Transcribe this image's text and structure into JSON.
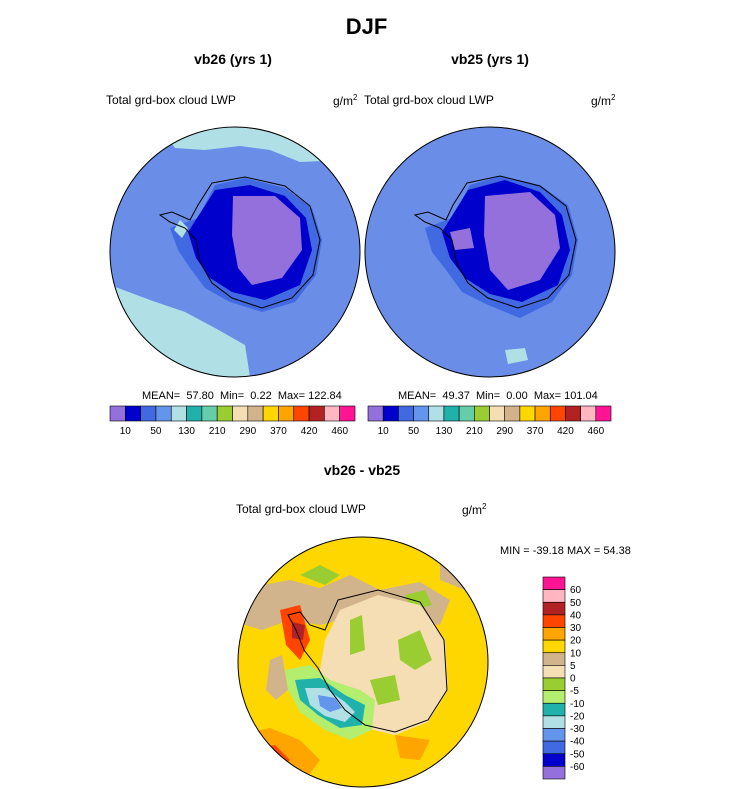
{
  "title": "DJF",
  "panels": [
    {
      "name": "vb26",
      "title": "vb26 (yrs 1)",
      "variable": "Total grd-box cloud LWP",
      "units_base": "g/m",
      "units_exp": "2",
      "stats": {
        "mean_label": "MEAN=",
        "mean": "57.80",
        "min_label": "Min=",
        "min": "0.22",
        "max_label": "Max=",
        "max": "122.84"
      }
    },
    {
      "name": "vb25",
      "title": "vb25 (yrs 1)",
      "variable": "Total grd-box cloud LWP",
      "units_base": "g/m",
      "units_exp": "2",
      "stats": {
        "mean_label": "MEAN=",
        "mean": "49.37",
        "min_label": "Min=",
        "min": "0.00",
        "max_label": "Max=",
        "max": "101.04"
      }
    }
  ],
  "diff": {
    "title": "vb26 - vb25",
    "variable": "Total grd-box cloud LWP",
    "units_base": "g/m",
    "units_exp": "2",
    "minmax": "MIN = -39.18 MAX =  54.38"
  },
  "chart_data": [
    {
      "type": "heatmap",
      "projection": "south-polar-stereographic",
      "title": "vb26 (yrs 1)",
      "field": "Total grd-box cloud LWP",
      "units": "g/m2",
      "mean": 57.8,
      "min": 0.22,
      "max": 122.84,
      "colorbar_colors": [
        "#9370db",
        "#0000cd",
        "#4169e1",
        "#6495ed",
        "#b0e0e6",
        "#20b2aa",
        "#66cdaa",
        "#9acd32",
        "#f5deb3",
        "#d2b48c",
        "#ffd700",
        "#ffa500",
        "#ff4500",
        "#b22222",
        "#ffb6c1",
        "#ff1493"
      ],
      "colorbar_labels": [
        "10",
        "50",
        "130",
        "210",
        "290",
        "370",
        "420",
        "460"
      ]
    },
    {
      "type": "heatmap",
      "projection": "south-polar-stereographic",
      "title": "vb25 (yrs 1)",
      "field": "Total grd-box cloud LWP",
      "units": "g/m2",
      "mean": 49.37,
      "min": 0.0,
      "max": 101.04,
      "colorbar_colors": [
        "#9370db",
        "#0000cd",
        "#4169e1",
        "#6495ed",
        "#b0e0e6",
        "#20b2aa",
        "#66cdaa",
        "#9acd32",
        "#f5deb3",
        "#d2b48c",
        "#ffd700",
        "#ffa500",
        "#ff4500",
        "#b22222",
        "#ffb6c1",
        "#ff1493"
      ],
      "colorbar_labels": [
        "10",
        "50",
        "130",
        "210",
        "290",
        "370",
        "420",
        "460"
      ]
    },
    {
      "type": "heatmap",
      "projection": "south-polar-stereographic",
      "title": "vb26 - vb25",
      "field": "Total grd-box cloud LWP",
      "units": "g/m2",
      "min": -39.18,
      "max": 54.38,
      "colorbar_colors": [
        "#ff1493",
        "#ffb6c1",
        "#b22222",
        "#ff4500",
        "#ffa500",
        "#ffd700",
        "#d2b48c",
        "#f5deb3",
        "#9acd32",
        "#b3ee6f",
        "#20b2aa",
        "#b0e0e6",
        "#6495ed",
        "#4169e1",
        "#0000cd",
        "#9370db"
      ],
      "colorbar_labels": [
        "60",
        "50",
        "40",
        "30",
        "20",
        "10",
        "5",
        "0",
        "-5",
        "-10",
        "-20",
        "-30",
        "-40",
        "-50",
        "-60"
      ]
    }
  ]
}
